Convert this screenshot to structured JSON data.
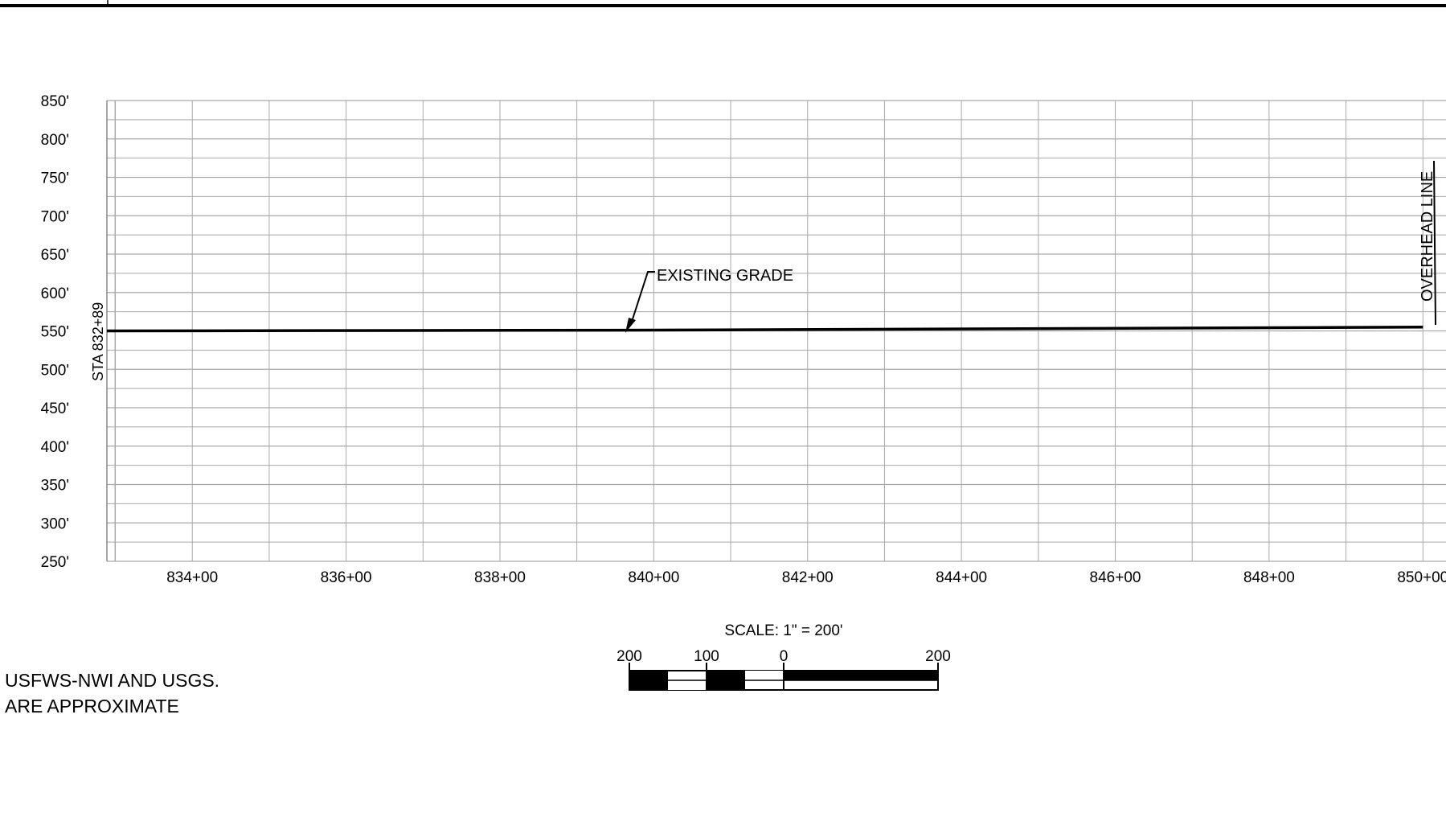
{
  "chart_data": {
    "type": "line",
    "title": "",
    "xlabel": "",
    "ylabel": "",
    "ylim": [
      250,
      850
    ],
    "xlim": [
      83289,
      85030
    ],
    "y_ticks": [
      "850'",
      "800'",
      "750'",
      "700'",
      "650'",
      "600'",
      "550'",
      "500'",
      "450'",
      "400'",
      "350'",
      "300'",
      "250'"
    ],
    "x_ticks": [
      "834+00",
      "836+00",
      "838+00",
      "840+00",
      "842+00",
      "844+00",
      "846+00",
      "848+00",
      "850+00"
    ],
    "grid": true,
    "series": [
      {
        "name": "EXISTING GRADE",
        "x": [
          83289,
          84000,
          85000
        ],
        "y": [
          550,
          551,
          555
        ]
      }
    ],
    "annotations": {
      "start_station": "STA 832+89",
      "existing_grade": "EXISTING GRADE",
      "overhead_line": "OVERHEAD LINE"
    }
  },
  "scale_bar": {
    "title": "SCALE: 1\" = 200'",
    "labels": [
      "200",
      "100",
      "0",
      "200"
    ]
  },
  "notes": {
    "line1": "USFWS-NWI AND USGS.",
    "line2": "ARE APPROXIMATE"
  }
}
